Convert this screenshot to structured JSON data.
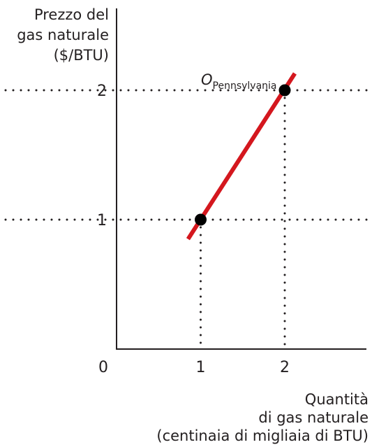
{
  "chart_data": {
    "type": "line",
    "ylabel_lines": [
      "Prezzo del",
      "gas naturale",
      "($/BTU)"
    ],
    "xlabel_lines": [
      "Quantità",
      "di gas naturale",
      "(centinaia di migliaia di BTU)"
    ],
    "origin_label": "0",
    "x_ticks": [
      "1",
      "2"
    ],
    "y_ticks": [
      "1",
      "2"
    ],
    "xlim": [
      0,
      3
    ],
    "ylim": [
      0,
      2.9
    ],
    "series": [
      {
        "name": "OPennsylvania",
        "name_main": "O",
        "name_sub": "Pennsylvania",
        "color": "#d4171e",
        "line": [
          [
            0.85,
            0.85
          ],
          [
            2.12,
            2.13
          ]
        ],
        "points": [
          {
            "x": 1,
            "y": 1
          },
          {
            "x": 2,
            "y": 2
          }
        ]
      }
    ],
    "guides": {
      "style": "dotted",
      "color": "#231f20"
    },
    "grid": false
  }
}
